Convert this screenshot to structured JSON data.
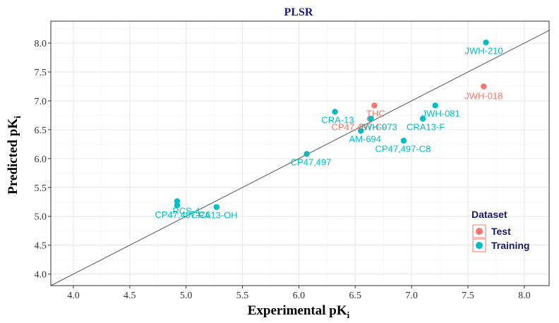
{
  "chart_data": {
    "type": "scatter",
    "title": "PLSR",
    "xlabel_main": "Experimental pK",
    "xlabel_sub": "i",
    "ylabel_main": "Predicted pK",
    "ylabel_sub": "i",
    "xlim": [
      3.8,
      8.22
    ],
    "ylim": [
      3.8,
      8.38
    ],
    "xticks": [
      "4.0",
      "4.5",
      "5.0",
      "5.5",
      "6.0",
      "6.5",
      "7.0",
      "7.5",
      "8.0"
    ],
    "yticks": [
      "4.0",
      "4.5",
      "5.0",
      "5.5",
      "6.0",
      "6.5",
      "7.0",
      "7.5",
      "8.0"
    ],
    "grid": true,
    "reference_line": "y = x",
    "legend": {
      "title": "Dataset",
      "position": "right",
      "entries": [
        {
          "name": "Test",
          "color": "#f8766d"
        },
        {
          "name": "Training",
          "color": "#00bfc4"
        }
      ]
    },
    "series": [
      {
        "name": "Test",
        "color": "#f8766d",
        "points": [
          {
            "label": "JWH-018",
            "x": 7.64,
            "y": 7.25
          },
          {
            "label": "THC",
            "x": 6.67,
            "y": 6.92
          },
          {
            "label": "CP47,497-C9",
            "x": 6.63,
            "y": 6.69
          }
        ]
      },
      {
        "name": "Training",
        "color": "#00bfc4",
        "points": [
          {
            "label": "JWH-210",
            "x": 7.66,
            "y": 8.01
          },
          {
            "label": "JWH-081",
            "x": 7.21,
            "y": 6.92
          },
          {
            "label": "CRA13-F",
            "x": 7.1,
            "y": 6.69
          },
          {
            "label": "CRA-13",
            "x": 6.32,
            "y": 6.81
          },
          {
            "label": "JWH-073",
            "x": 6.64,
            "y": 6.69
          },
          {
            "label": "AM-694",
            "x": 6.55,
            "y": 6.48
          },
          {
            "label": "CP47,497-C8",
            "x": 6.93,
            "y": 6.31
          },
          {
            "label": "CP47,497",
            "x": 6.07,
            "y": 6.08
          },
          {
            "label": "RCS-4",
            "x": 4.92,
            "y": 5.26
          },
          {
            "label": "CP47,497-C6",
            "x": 4.92,
            "y": 5.19
          },
          {
            "label": "CRA13-OH",
            "x": 5.27,
            "y": 5.16
          }
        ]
      }
    ]
  }
}
